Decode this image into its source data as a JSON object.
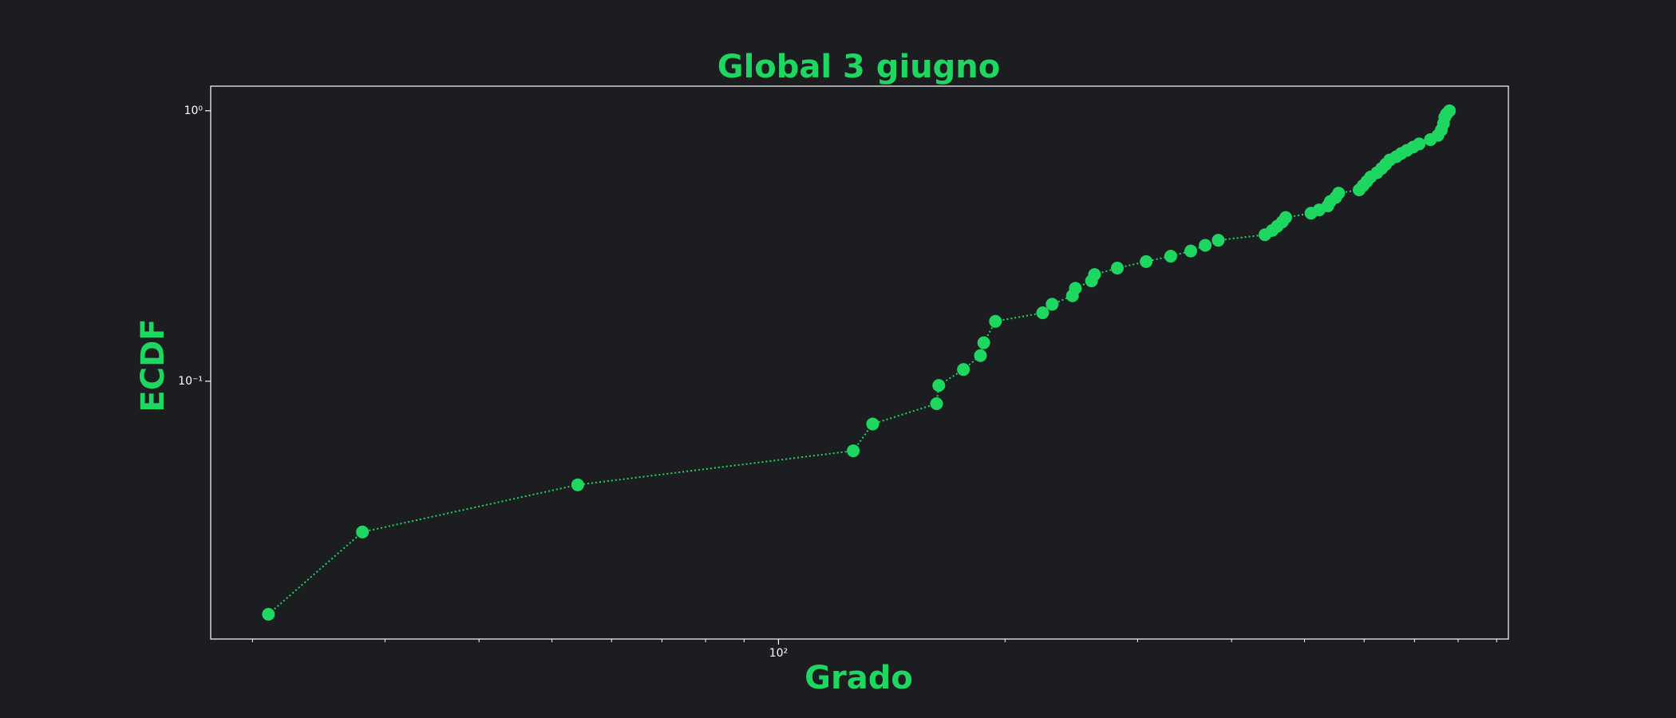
{
  "chart_data": {
    "type": "line",
    "title": "Global 3 giugno",
    "x_label": "Grado",
    "y_label": "ECDF",
    "xscale": "log",
    "yscale": "log",
    "color": "#1ed760",
    "x": [
      21.0,
      28.0,
      54.1,
      125.7,
      133.4,
      162.2,
      163.3,
      176.1,
      185.5,
      187.4,
      194.2,
      224.4,
      231,
      245.8,
      248,
      260.6,
      263,
      282,
      308,
      332,
      353,
      369,
      384,
      443,
      453,
      460,
      467,
      472,
      510,
      523,
      537,
      541,
      550,
      555,
      591,
      598,
      605,
      612,
      624,
      633,
      641,
      649,
      662,
      672,
      684,
      697,
      710,
      735,
      752,
      760,
      765,
      768,
      772,
      779
    ],
    "values": [
      0.01375,
      0.0277,
      0.0414,
      0.0553,
      0.0695,
      0.0826,
      0.0965,
      0.1105,
      0.1244,
      0.1388,
      0.1665,
      0.179,
      0.1925,
      0.207,
      0.2206,
      0.235,
      0.248,
      0.262,
      0.277,
      0.29,
      0.303,
      0.318,
      0.332,
      0.348,
      0.361,
      0.374,
      0.388,
      0.403,
      0.418,
      0.43,
      0.445,
      0.462,
      0.478,
      0.496,
      0.51,
      0.529,
      0.548,
      0.569,
      0.59,
      0.612,
      0.634,
      0.658,
      0.676,
      0.695,
      0.714,
      0.734,
      0.754,
      0.782,
      0.811,
      0.849,
      0.897,
      0.947,
      0.973,
      1.0
    ],
    "xlim": [
      17.6,
      933
    ],
    "ylim": [
      0.01114,
      1.233
    ],
    "xticks": [
      {
        "value": 100,
        "label": "10²"
      }
    ],
    "xminorticks": [
      20,
      30,
      40,
      50,
      60,
      70,
      80,
      90,
      200,
      300,
      400,
      500,
      600,
      700,
      800,
      900
    ],
    "yticks": [
      {
        "value": 0.1,
        "label": "10⁻¹"
      },
      {
        "value": 1,
        "label": "10⁰"
      }
    ]
  }
}
